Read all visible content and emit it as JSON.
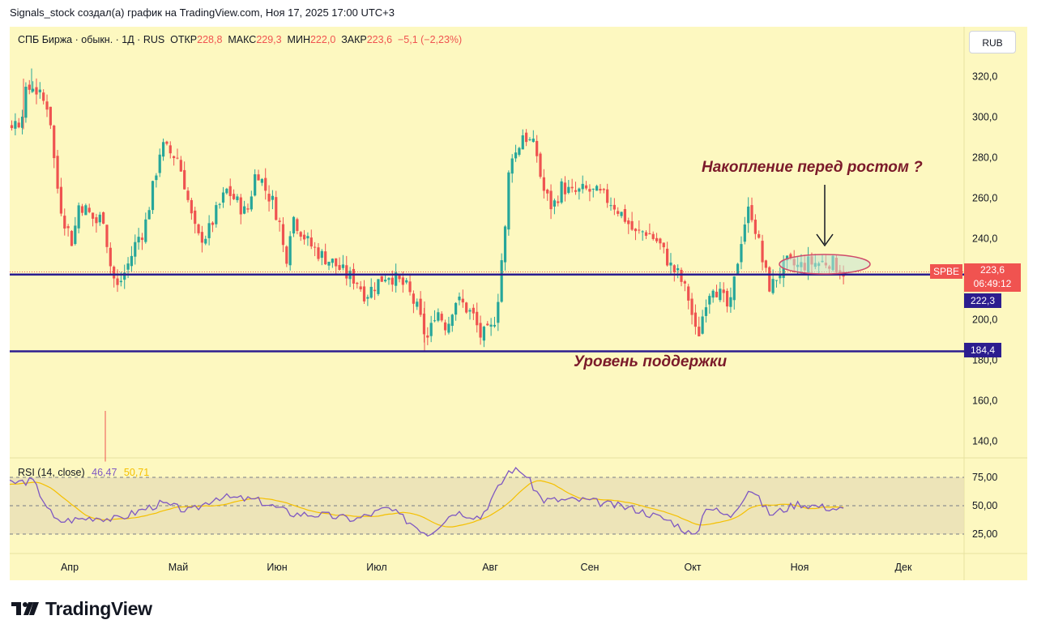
{
  "header": {
    "attribution": "Signals_stock создал(а) график на TradingView.com, Ноя 17, 2025 17:00 UTC+3"
  },
  "legend": {
    "symbol": "СПБ Биржа · обыкн. · 1Д · RUS",
    "open_label": "ОТКР",
    "open": "228,8",
    "high_label": "МАКС",
    "high": "229,3",
    "low_label": "МИН",
    "low": "222,0",
    "close_label": "ЗАКР",
    "close": "223,6",
    "change": "−5,1 (−2,23%)"
  },
  "currency_button": "RUB",
  "rsi_legend": {
    "name": "RSI (14, close)",
    "rsi": "46,47",
    "ma": "50,71"
  },
  "annotations": {
    "accumulation": "Накопление перед ростом ?",
    "support": "Уровень поддержки"
  },
  "price_tags": {
    "symbol": "SPBE",
    "last": "223,6",
    "countdown": "06:49:12",
    "line1": "222,3",
    "line2": "184,4"
  },
  "brand": "TradingView",
  "colors": {
    "up": "#26a69a",
    "down": "#ef5350",
    "level_line": "#2c1d8f",
    "rsi": "#7e57c2",
    "rsi_ma": "#f5c000",
    "annotation": "#7b1a2a"
  },
  "chart_data": {
    "type": "candlestick",
    "interval": "1D",
    "price_axis": {
      "ticks": [
        "320,0",
        "300,0",
        "280,0",
        "260,0",
        "240,0",
        "200,0",
        "180,0",
        "160,0",
        "140,0"
      ],
      "range": [
        131,
        338
      ]
    },
    "time_axis": {
      "ticks": [
        "Апр",
        "Май",
        "Июн",
        "Июл",
        "Авг",
        "Сен",
        "Окт",
        "Ноя",
        "Дек"
      ]
    },
    "horizontal_levels": [
      222.3,
      184.4
    ],
    "ohlc_keypoints": [
      [
        "Mar 14",
        290
      ],
      [
        "Mar 18",
        298
      ],
      [
        "Mar 20",
        312
      ],
      [
        "Mar 22",
        316
      ],
      [
        "Mar 25",
        308
      ],
      [
        "Mar 27",
        305
      ],
      [
        "Mar 29",
        270
      ],
      [
        "Mar 31",
        252
      ],
      [
        "Apr 3",
        238
      ],
      [
        "Apr 5",
        258
      ],
      [
        "Apr 8",
        252
      ],
      [
        "Apr 10",
        248
      ],
      [
        "Apr 12",
        252
      ],
      [
        "Apr 14",
        228
      ],
      [
        "Apr 16",
        215
      ],
      [
        "Apr 18",
        222
      ],
      [
        "Apr 20",
        230
      ],
      [
        "Apr 22",
        240
      ],
      [
        "Apr 24",
        244
      ],
      [
        "Apr 27",
        268
      ],
      [
        "Apr 29",
        286
      ],
      [
        "May 2",
        282
      ],
      [
        "May 4",
        280
      ],
      [
        "May 6",
        268
      ],
      [
        "May 8",
        252
      ],
      [
        "May 10",
        240
      ],
      [
        "May 13",
        242
      ],
      [
        "May 16",
        254
      ],
      [
        "May 19",
        264
      ],
      [
        "May 22",
        258
      ],
      [
        "May 25",
        252
      ],
      [
        "May 28",
        275
      ],
      [
        "May 31",
        263
      ],
      [
        "Jun 2",
        258
      ],
      [
        "Jun 4",
        248
      ],
      [
        "Jun 6",
        228
      ],
      [
        "Jun 8",
        252
      ],
      [
        "Jun 10",
        246
      ],
      [
        "Jun 13",
        238
      ],
      [
        "Jun 17",
        232
      ],
      [
        "Jun 21",
        228
      ],
      [
        "Jun 25",
        222
      ],
      [
        "Jun 28",
        220
      ],
      [
        "Jul 1",
        212
      ],
      [
        "Jul 4",
        218
      ],
      [
        "Jul 7",
        223
      ],
      [
        "Jul 9",
        220
      ],
      [
        "Jul 12",
        216
      ],
      [
        "Jul 15",
        205
      ],
      [
        "Jul 17",
        193
      ],
      [
        "Jul 18",
        190
      ],
      [
        "Jul 20",
        206
      ],
      [
        "Jul 23",
        196
      ],
      [
        "Jul 25",
        210
      ],
      [
        "Jul 27",
        208
      ],
      [
        "Jul 30",
        202
      ],
      [
        "Aug 1",
        192
      ],
      [
        "Aug 4",
        194
      ],
      [
        "Aug 6",
        204
      ],
      [
        "Aug 7",
        223
      ],
      [
        "Aug 9",
        250
      ],
      [
        "Aug 10",
        283
      ],
      [
        "Aug 12",
        282
      ],
      [
        "Aug 14",
        292
      ],
      [
        "Aug 16",
        288
      ],
      [
        "Aug 18",
        284
      ],
      [
        "Aug 20",
        265
      ],
      [
        "Aug 23",
        255
      ],
      [
        "Aug 26",
        266
      ],
      [
        "Aug 29",
        262
      ],
      [
        "Sep 2",
        264
      ],
      [
        "Sep 6",
        262
      ],
      [
        "Sep 10",
        258
      ],
      [
        "Sep 14",
        250
      ],
      [
        "Sep 17",
        242
      ],
      [
        "Sep 20",
        244
      ],
      [
        "Sep 24",
        238
      ],
      [
        "Sep 28",
        225
      ],
      [
        "Sep 30",
        222
      ],
      [
        "Oct 3",
        210
      ],
      [
        "Oct 5",
        193
      ],
      [
        "Oct 6",
        194
      ],
      [
        "Oct 8",
        210
      ],
      [
        "Oct 10",
        218
      ],
      [
        "Oct 13",
        210
      ],
      [
        "Oct 15",
        204
      ],
      [
        "Oct 17",
        226
      ],
      [
        "Oct 19",
        246
      ],
      [
        "Oct 21",
        256
      ],
      [
        "Oct 23",
        242
      ],
      [
        "Oct 25",
        226
      ],
      [
        "Oct 27",
        215
      ],
      [
        "Oct 29",
        222
      ],
      [
        "Nov 1",
        228
      ],
      [
        "Nov 4",
        226
      ],
      [
        "Nov 7",
        228
      ],
      [
        "Nov 10",
        228
      ],
      [
        "Nov 13",
        229
      ],
      [
        "Nov 17",
        223.6
      ]
    ],
    "rsi": {
      "range": [
        0,
        100
      ],
      "bands": [
        25,
        50,
        75
      ],
      "axis_ticks": [
        "75,00",
        "50,00",
        "25,00"
      ],
      "keypoints": [
        [
          "Mar 14",
          67
        ],
        [
          "Mar 22",
          72
        ],
        [
          "Mar 29",
          36
        ],
        [
          "Apr 10",
          40
        ],
        [
          "Apr 16",
          38
        ],
        [
          "Apr 24",
          47
        ],
        [
          "Apr 29",
          52
        ],
        [
          "May 8",
          45
        ],
        [
          "May 16",
          58
        ],
        [
          "May 28",
          55
        ],
        [
          "Jun 8",
          43
        ],
        [
          "Jun 17",
          42
        ],
        [
          "Jun 28",
          38
        ],
        [
          "Jul 7",
          48
        ],
        [
          "Jul 18",
          25
        ],
        [
          "Jul 25",
          45
        ],
        [
          "Aug 1",
          40
        ],
        [
          "Aug 10",
          82
        ],
        [
          "Aug 14",
          80
        ],
        [
          "Aug 20",
          55
        ],
        [
          "Sep 2",
          55
        ],
        [
          "Sep 17",
          47
        ],
        [
          "Sep 28",
          36
        ],
        [
          "Oct 5",
          22
        ],
        [
          "Oct 8",
          50
        ],
        [
          "Oct 15",
          40
        ],
        [
          "Oct 21",
          66
        ],
        [
          "Oct 27",
          42
        ],
        [
          "Nov 4",
          52
        ],
        [
          "Nov 17",
          46.47
        ]
      ]
    }
  }
}
